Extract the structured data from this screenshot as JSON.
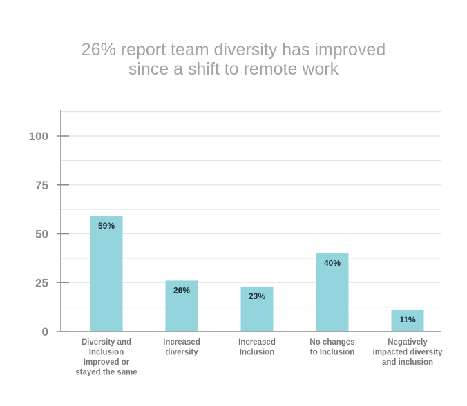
{
  "chart_data": {
    "type": "bar",
    "title_lines": [
      "26% report team diversity has improved",
      "since a shift to remote work"
    ],
    "categories": [
      [
        "Diversity and",
        "Inclusion",
        "Improved or",
        "stayed the same"
      ],
      [
        "Increased",
        "diversity"
      ],
      [
        "Increased",
        "Inclusion"
      ],
      [
        "No changes",
        "to Inclusion"
      ],
      [
        "Negatively",
        "impacted diversity",
        "and inclusion"
      ]
    ],
    "values": [
      59,
      26,
      23,
      40,
      11
    ],
    "data_labels": [
      "59%",
      "26%",
      "23%",
      "40%",
      "11%"
    ],
    "ylim": [
      0,
      100
    ],
    "yticks": [
      0,
      25,
      50,
      75,
      100
    ],
    "grid": true,
    "xlabel": "",
    "ylabel": "",
    "colors": {
      "bar": "#94d4dc",
      "grid": "#e4e4e4",
      "axis": "#8c8c8c",
      "title": "#a3a3a3",
      "tick": "#8a8a8a",
      "category": "#777777",
      "data_label": "#1d2b3a"
    }
  }
}
